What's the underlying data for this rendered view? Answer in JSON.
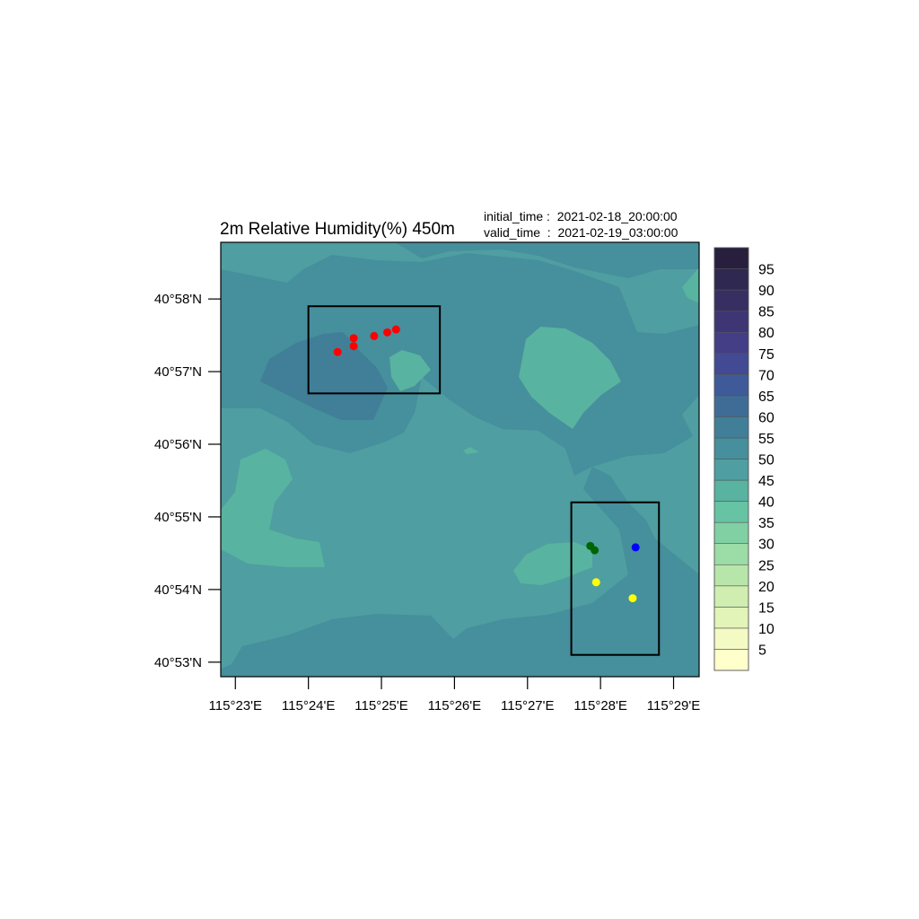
{
  "plot": {
    "title": "2m Relative Humidity(%) 450m",
    "initial_time_text": "initial_time :  2021-02-18_20:00:00",
    "valid_time_text": "valid_time  :  2021-02-19_03:00:00"
  },
  "map": {
    "lon_labels": [
      "115°23'E",
      "115°24'E",
      "115°25'E",
      "115°26'E",
      "115°27'E",
      "115°28'E",
      "115°29'E"
    ],
    "lat_labels": [
      "40°58'N",
      "40°57'N",
      "40°56'N",
      "40°55'N",
      "40°54'N",
      "40°53'N"
    ],
    "lon_range_min": [
      22.8,
      29.35
    ],
    "lat_range_min": [
      52.8,
      58.78
    ],
    "colors": {
      "field_45_50": "#4f9ea1",
      "field_50_55": "#468f9c",
      "field_55_60": "#417f98",
      "field_40_45": "#58b3a0",
      "frame": "#000000"
    },
    "boxes": [
      {
        "name": "northwest-box",
        "lon": [
          24.0,
          25.8
        ],
        "lat": [
          56.7,
          57.9
        ]
      },
      {
        "name": "southeast-box",
        "lon": [
          27.6,
          28.8
        ],
        "lat": [
          53.1,
          55.2
        ]
      }
    ],
    "points": [
      {
        "lon": 24.4,
        "lat": 57.27,
        "color": "#ff0000"
      },
      {
        "lon": 24.62,
        "lat": 57.35,
        "color": "#ff0000"
      },
      {
        "lon": 24.62,
        "lat": 57.46,
        "color": "#ff0000"
      },
      {
        "lon": 24.9,
        "lat": 57.49,
        "color": "#ff0000"
      },
      {
        "lon": 25.08,
        "lat": 57.54,
        "color": "#ff0000"
      },
      {
        "lon": 25.2,
        "lat": 57.58,
        "color": "#ff0000"
      },
      {
        "lon": 27.86,
        "lat": 54.6,
        "color": "#006400"
      },
      {
        "lon": 27.92,
        "lat": 54.54,
        "color": "#006400"
      },
      {
        "lon": 28.48,
        "lat": 54.58,
        "color": "#0000ff"
      },
      {
        "lon": 27.94,
        "lat": 54.1,
        "color": "#ffff00"
      },
      {
        "lon": 28.44,
        "lat": 53.88,
        "color": "#ffff00"
      }
    ]
  },
  "colorbar": {
    "labels": [
      "95",
      "90",
      "85",
      "80",
      "75",
      "70",
      "65",
      "60",
      "55",
      "50",
      "45",
      "40",
      "35",
      "30",
      "25",
      "20",
      "15",
      "10",
      "5"
    ],
    "colors": [
      "#ffffcc",
      "#f4fac3",
      "#e2f4b8",
      "#cfeeb0",
      "#b8e6aa",
      "#9cdca6",
      "#80d0a4",
      "#66c3a3",
      "#58b3a0",
      "#4f9ea1",
      "#468f9c",
      "#417f98",
      "#3f6c97",
      "#3e5a98",
      "#414a93",
      "#433e85",
      "#3e3574",
      "#372e62",
      "#2f2850",
      "#281f3f"
    ]
  }
}
